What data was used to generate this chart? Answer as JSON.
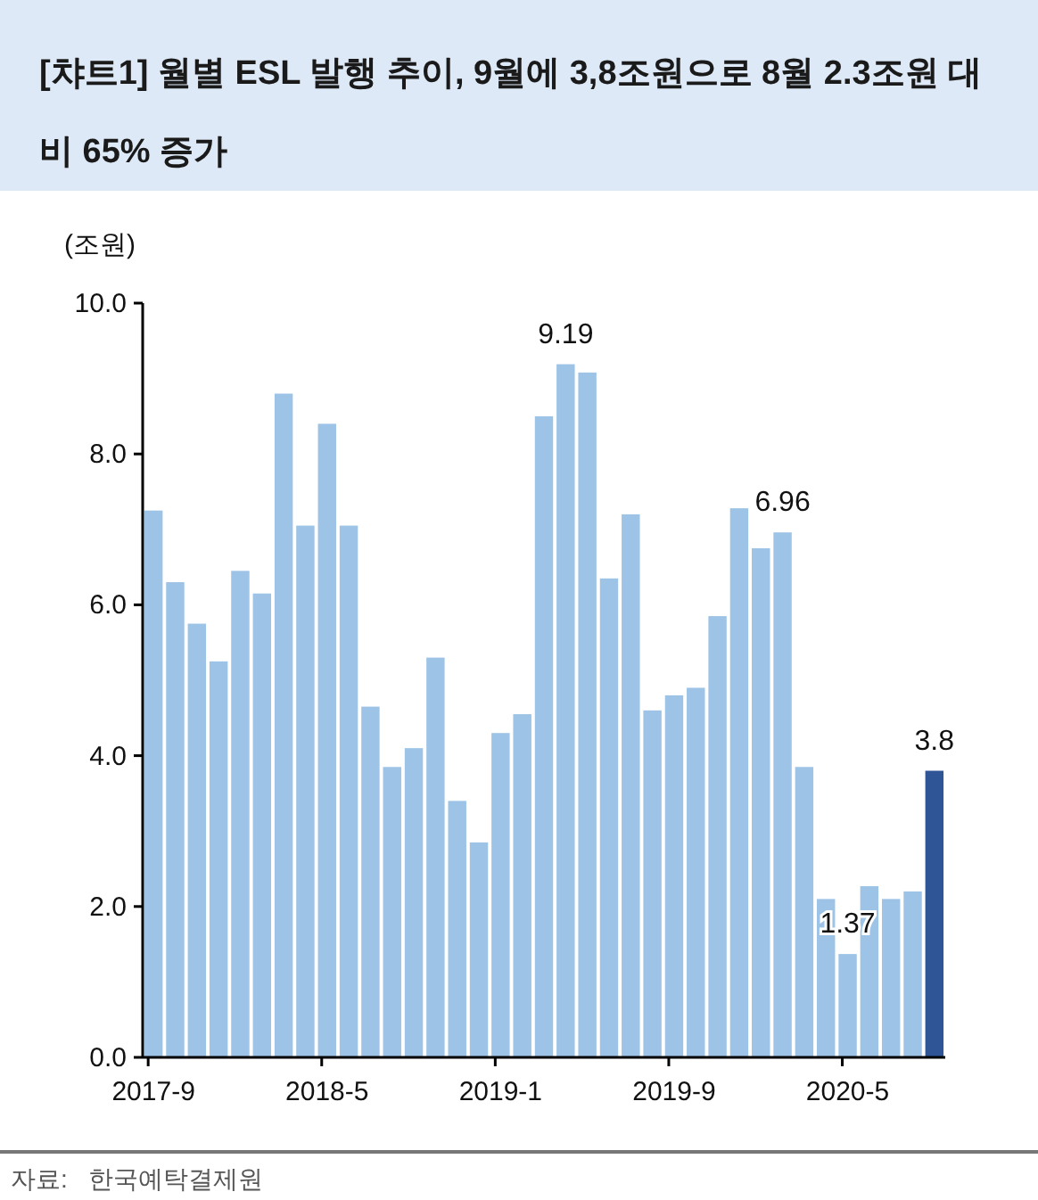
{
  "chart_data": {
    "type": "bar",
    "title": "[챠트1] 월별 ESL 발행 추이, 9월에 3,8조원으로 8월 2.3조원 대비 65% 증가",
    "ylabel": "(조원)",
    "categories": [
      "2017-9",
      null,
      null,
      null,
      null,
      null,
      null,
      null,
      "2018-5",
      null,
      null,
      null,
      null,
      null,
      null,
      null,
      "2019-1",
      null,
      null,
      null,
      null,
      null,
      null,
      null,
      "2019-9",
      null,
      null,
      null,
      null,
      null,
      null,
      null,
      "2020-5",
      null,
      null,
      null,
      null
    ],
    "values": [
      7.25,
      6.3,
      5.75,
      5.25,
      6.45,
      6.15,
      8.8,
      7.05,
      8.4,
      7.05,
      4.65,
      3.85,
      4.1,
      5.3,
      3.4,
      2.85,
      4.3,
      4.55,
      8.5,
      9.19,
      9.08,
      6.35,
      7.2,
      4.6,
      4.8,
      4.9,
      5.85,
      7.28,
      6.75,
      6.96,
      3.85,
      2.1,
      1.37,
      2.27,
      2.1,
      2.2,
      3.8
    ],
    "colors": [
      "#9dc3e6",
      "#9dc3e6",
      "#9dc3e6",
      "#9dc3e6",
      "#9dc3e6",
      "#9dc3e6",
      "#9dc3e6",
      "#9dc3e6",
      "#9dc3e6",
      "#9dc3e6",
      "#9dc3e6",
      "#9dc3e6",
      "#9dc3e6",
      "#9dc3e6",
      "#9dc3e6",
      "#9dc3e6",
      "#9dc3e6",
      "#9dc3e6",
      "#9dc3e6",
      "#9dc3e6",
      "#9dc3e6",
      "#9dc3e6",
      "#9dc3e6",
      "#9dc3e6",
      "#9dc3e6",
      "#9dc3e6",
      "#9dc3e6",
      "#9dc3e6",
      "#9dc3e6",
      "#9dc3e6",
      "#9dc3e6",
      "#9dc3e6",
      "#9dc3e6",
      "#9dc3e6",
      "#9dc3e6",
      "#9dc3e6",
      "#2f5597"
    ],
    "value_labels": [
      null,
      null,
      null,
      null,
      null,
      null,
      null,
      null,
      null,
      null,
      null,
      null,
      null,
      null,
      null,
      null,
      null,
      null,
      null,
      "9.19",
      null,
      null,
      null,
      null,
      null,
      null,
      null,
      null,
      null,
      "6.96",
      null,
      null,
      "1.37",
      null,
      null,
      null,
      "3.8"
    ],
    "ylim": [
      0,
      10
    ],
    "yticks": [
      {
        "value": 0,
        "label": "0.0"
      },
      {
        "value": 2,
        "label": "2.0"
      },
      {
        "value": 4,
        "label": "4.0"
      },
      {
        "value": 6,
        "label": "6.0"
      },
      {
        "value": 8,
        "label": "8.0"
      },
      {
        "value": 10,
        "label": "10.0"
      }
    ],
    "grid": false,
    "annotations": [
      "자료:   한국예탁결제원"
    ]
  }
}
